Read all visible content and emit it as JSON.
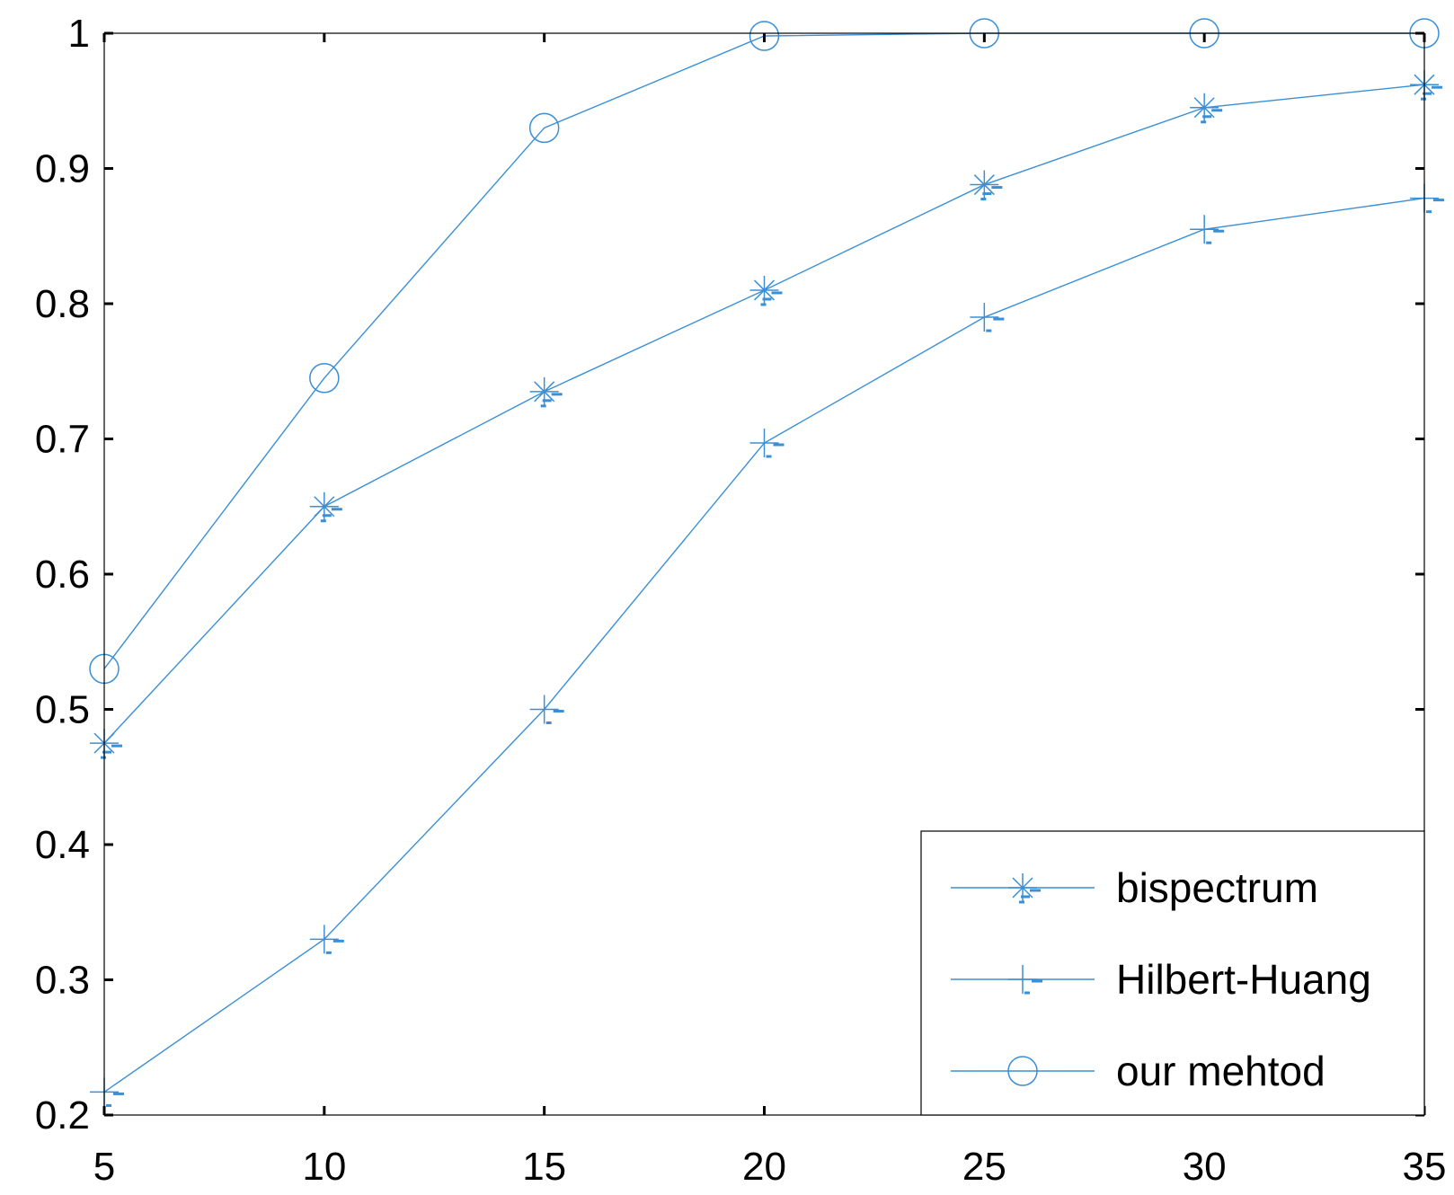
{
  "chart_data": {
    "type": "line",
    "title": "",
    "xlabel": "",
    "ylabel": "",
    "x": [
      5,
      10,
      15,
      20,
      25,
      30,
      35
    ],
    "xlim": [
      5,
      35
    ],
    "ylim": [
      0.2,
      1.0
    ],
    "x_ticks": [
      5,
      10,
      15,
      20,
      25,
      30,
      35
    ],
    "y_ticks": [
      0.2,
      0.3,
      0.4,
      0.5,
      0.6,
      0.7,
      0.8,
      0.9,
      1.0
    ],
    "x_tick_labels": [
      "5",
      "10",
      "15",
      "20",
      "25",
      "30",
      "35"
    ],
    "y_tick_labels": [
      "0.2",
      "0.3",
      "0.4",
      "0.5",
      "0.6",
      "0.7",
      "0.8",
      "0.9",
      "1"
    ],
    "grid": false,
    "legend_position": "bottom-right",
    "line_color": "#3a8fd6",
    "series": [
      {
        "name": "bispectrum",
        "marker": "star",
        "values": [
          0.475,
          0.65,
          0.735,
          0.81,
          0.888,
          0.945,
          0.962
        ]
      },
      {
        "name": "Hilbert-Huang",
        "marker": "plus",
        "values": [
          0.217,
          0.33,
          0.5,
          0.697,
          0.79,
          0.855,
          0.878
        ]
      },
      {
        "name": "our mehtod",
        "marker": "circle",
        "values": [
          0.53,
          0.745,
          0.93,
          0.998,
          1.0,
          1.0,
          1.0
        ]
      }
    ]
  }
}
